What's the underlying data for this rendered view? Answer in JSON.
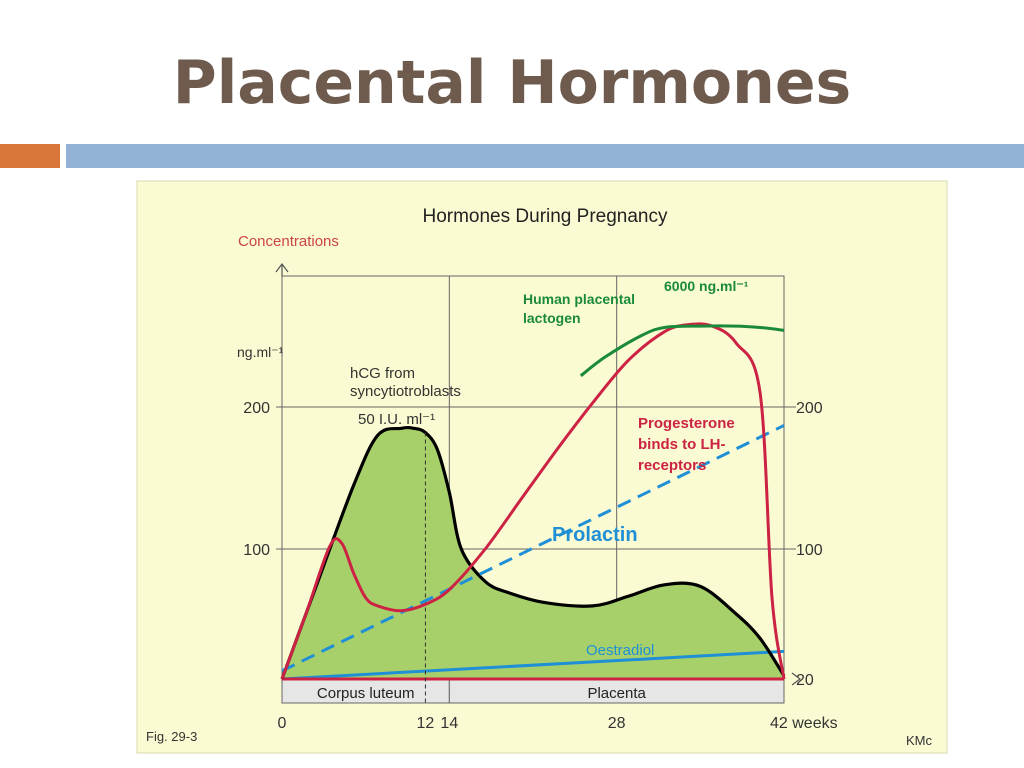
{
  "slide": {
    "title": "Placental Hormones"
  },
  "colors": {
    "title": "#6e5b4e",
    "accent_orange": "#d9773a",
    "accent_blue": "#93b3d6",
    "panel_bg": "#fbfbd3",
    "fill_green": "#a8d06a",
    "hcg_line": "#000000",
    "progesterone": "#cc2244",
    "hpl": "#1a8a3a",
    "prolactin": "#1f8fd6",
    "oestradiol": "#1f8fd6"
  },
  "chart_data": {
    "type": "line",
    "title": "Hormones During Pregnancy",
    "ylabel": "Concentrations",
    "left_unit": "ng.ml⁻¹",
    "xlim": [
      0,
      42
    ],
    "ylim": [
      20,
      260
    ],
    "x_ticks": [
      "0",
      "12",
      "14",
      "28",
      "42 weeks"
    ],
    "x_tick_values": [
      0,
      12,
      14,
      28,
      42
    ],
    "left_ticks": [
      "200",
      "100"
    ],
    "left_tick_values": [
      200,
      100
    ],
    "right_ticks": [
      "200",
      "100",
      "20"
    ],
    "right_tick_values": [
      200,
      100,
      20
    ],
    "grid": true,
    "phases": [
      {
        "label": "Corpus luteum",
        "from": 0,
        "to": 14
      },
      {
        "label": "Placenta",
        "from": 14,
        "to": 42
      }
    ],
    "series": [
      {
        "name": "hCG from syncytiotroblasts",
        "filled": true,
        "x": [
          0,
          3,
          6,
          8,
          10,
          11,
          12,
          13,
          14,
          15,
          17,
          19,
          22,
          26,
          29,
          32,
          35,
          38,
          40,
          42
        ],
        "y": [
          20,
          80,
          145,
          180,
          185,
          185,
          182,
          170,
          140,
          100,
          80,
          73,
          67,
          65,
          71,
          78,
          77,
          60,
          45,
          22
        ]
      },
      {
        "name": "Progesterone binds to LH-receptors",
        "x": [
          0,
          2,
          4,
          5,
          6,
          7,
          8,
          10,
          12,
          14,
          17,
          20,
          23,
          26,
          29,
          32,
          34,
          36,
          38,
          40,
          41,
          42
        ],
        "y": [
          20,
          60,
          102,
          104,
          85,
          70,
          65,
          62,
          66,
          75,
          100,
          135,
          170,
          203,
          233,
          253,
          258,
          257,
          245,
          210,
          70,
          20
        ],
        "tail_y": 20
      },
      {
        "name": "Human placental lactogen",
        "x": [
          25,
          27,
          30,
          32,
          35,
          38,
          40,
          42
        ],
        "y": [
          222,
          235,
          250,
          256,
          257,
          257,
          256,
          254
        ]
      },
      {
        "name": "Prolactin",
        "x": [
          0,
          42
        ],
        "y": [
          25,
          187
        ]
      },
      {
        "name": "Oestradiol",
        "x": [
          0,
          42
        ],
        "y": [
          20,
          37
        ]
      }
    ],
    "annotations": {
      "hcg": "hCG from\nsyncytiotroblasts",
      "hcg_peak": "50 I.U. ml⁻¹",
      "hpl": "Human placental\nlactogen",
      "hpl_peak": "6000 ng.ml⁻¹",
      "progesterone": "Progesterone\nbinds to LH-\nreceptors",
      "prolactin": "Prolactin",
      "oestradiol": "Oestradiol",
      "fig": "Fig. 29-3",
      "credit": "KMc"
    }
  }
}
